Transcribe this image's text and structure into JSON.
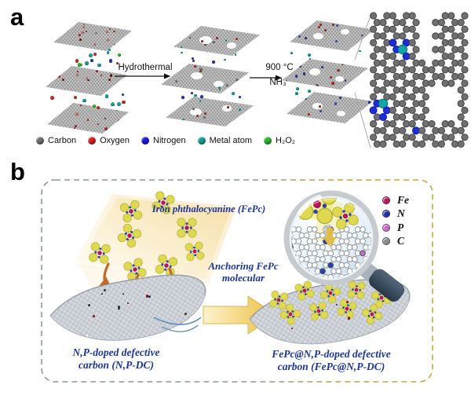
{
  "panel_a": {
    "label": "a",
    "step1_label": "Hydrothermal",
    "step2_label_top": "900 °C",
    "step2_label_bottom": "NH₃",
    "legend": [
      {
        "label": "Carbon",
        "color": "#6f6f6f"
      },
      {
        "label": "Oxygen",
        "color": "#d81f1f"
      },
      {
        "label": "Nitrogen",
        "color": "#1b1bd8"
      },
      {
        "label": "Metal atom",
        "color": "#189a9a"
      },
      {
        "label": "H₂O₂",
        "color": "#2db32d"
      }
    ]
  },
  "panel_b": {
    "label": "b",
    "fepc_source_label": "Iron phthalocyanine (FePc)",
    "process_label_line1": "Anchoring FePc",
    "process_label_line2": "molecular",
    "left_material_line1": "N,P-doped defective",
    "left_material_line2": "carbon (N,P-DC)",
    "right_material_line1": "FePc@N,P-doped defective",
    "right_material_line2": "carbon (FePc@N,P-DC)",
    "legend": [
      {
        "label": "Fe",
        "color": "#c2125e"
      },
      {
        "label": "N",
        "color": "#2130b0"
      },
      {
        "label": "P",
        "color": "#c76bc9"
      },
      {
        "label": "C",
        "color": "#8a8a8a"
      }
    ],
    "text_color": "#1c3699",
    "border_color_left": "#8796a6",
    "border_color_right": "#c9a83f"
  }
}
